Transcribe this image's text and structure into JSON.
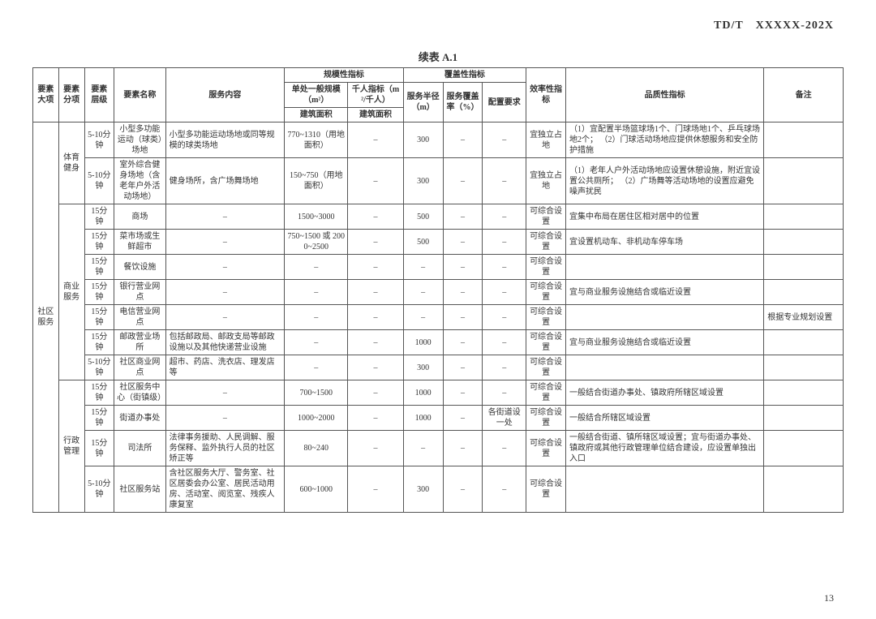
{
  "doc_id": "TD/T XXXXX-202X",
  "title": "续表 A.1",
  "page_num": "13",
  "headers": {
    "h_daxiang": "要素大项",
    "h_fenxiang": "要素分项",
    "h_cengji": "要素层级",
    "h_mingcheng": "要素名称",
    "h_neirong": "服务内容",
    "h_guimo_group": "规模性指标",
    "h_danchu": "单处一般规模（m²）",
    "h_qianren": "千人指标（m²/千人）",
    "h_jianzhu1": "建筑面积",
    "h_jianzhu2": "建筑面积",
    "h_fugai_group": "覆盖性指标",
    "h_banjing": "服务半径（m）",
    "h_fugailv": "服务覆盖率（%）",
    "h_peizhi": "配置要求",
    "h_xiaolv": "效率性指标",
    "h_pinzhi": "品质性指标",
    "h_beizhu": "备注"
  },
  "cat_major": "社区服务",
  "cat_sport": "体育健身",
  "cat_commerce": "商业服务",
  "cat_admin": "行政管理",
  "rows": [
    {
      "lvl": "5-10分钟",
      "name": "小型多功能运动（球类）场地",
      "content": "小型多功能运动场地或同等规模的球类场地",
      "scale": "770~1310（用地面积）",
      "qianren": "–",
      "radius": "300",
      "cov": "–",
      "req": "–",
      "eff": "宜独立占地",
      "quality": "（1）宜配置半场篮球场1个、门球场地1个、乒乓球场地2个；\n（2）门球活动场地应提供休憩服务和安全防护措施",
      "note": ""
    },
    {
      "lvl": "5-10分钟",
      "name": "室外综合健身场地（含老年户外活动场地）",
      "content": "健身场所，含广场舞场地",
      "scale": "150~750（用地面积）",
      "qianren": "–",
      "radius": "300",
      "cov": "–",
      "req": "–",
      "eff": "宜独立占地",
      "quality": "（1）老年人户外活动场地应设置休憩设施，附近宜设置公共厕所；\n（2）广场舞等活动场地的设置应避免噪声扰民",
      "note": ""
    },
    {
      "lvl": "15分钟",
      "name": "商场",
      "content": "–",
      "scale": "1500~3000",
      "qianren": "–",
      "radius": "500",
      "cov": "–",
      "req": "–",
      "eff": "可综合设置",
      "quality": "宜集中布局在居住区相对居中的位置",
      "note": ""
    },
    {
      "lvl": "15分钟",
      "name": "菜市场或生鲜超市",
      "content": "–",
      "scale": "750~1500 或 2000~2500",
      "qianren": "–",
      "radius": "500",
      "cov": "–",
      "req": "–",
      "eff": "可综合设置",
      "quality": "宜设置机动车、非机动车停车场",
      "note": ""
    },
    {
      "lvl": "15分钟",
      "name": "餐饮设施",
      "content": "–",
      "scale": "–",
      "qianren": "–",
      "radius": "–",
      "cov": "–",
      "req": "–",
      "eff": "可综合设置",
      "quality": "",
      "note": ""
    },
    {
      "lvl": "15分钟",
      "name": "银行营业网点",
      "content": "–",
      "scale": "–",
      "qianren": "–",
      "radius": "–",
      "cov": "–",
      "req": "–",
      "eff": "可综合设置",
      "quality": "宜与商业服务设施结合或临近设置",
      "note": ""
    },
    {
      "lvl": "15分钟",
      "name": "电信营业网点",
      "content": "–",
      "scale": "–",
      "qianren": "–",
      "radius": "–",
      "cov": "–",
      "req": "–",
      "eff": "可综合设置",
      "quality": "",
      "note": "根据专业规划设置"
    },
    {
      "lvl": "15分钟",
      "name": "邮政营业场所",
      "content": "包括邮政局、邮政支局等邮政设施以及其他快递营业设施",
      "scale": "–",
      "qianren": "–",
      "radius": "1000",
      "cov": "–",
      "req": "–",
      "eff": "可综合设置",
      "quality": "宜与商业服务设施结合或临近设置",
      "note": ""
    },
    {
      "lvl": "5-10分钟",
      "name": "社区商业网点",
      "content": "超市、药店、洗衣店、理发店等",
      "scale": "–",
      "qianren": "–",
      "radius": "300",
      "cov": "–",
      "req": "–",
      "eff": "可综合设置",
      "quality": "",
      "note": ""
    },
    {
      "lvl": "15分钟",
      "name": "社区服务中心（街镇级）",
      "content": "–",
      "scale": "700~1500",
      "qianren": "–",
      "radius": "1000",
      "cov": "–",
      "req": "–",
      "eff": "可综合设置",
      "quality": "一般结合街道办事处、镇政府所辖区域设置",
      "note": ""
    },
    {
      "lvl": "15分钟",
      "name": "街道办事处",
      "content": "–",
      "scale": "1000~2000",
      "qianren": "–",
      "radius": "1000",
      "cov": "–",
      "req": "各街道设一处",
      "eff": "可综合设置",
      "quality": "一般结合所辖区域设置",
      "note": ""
    },
    {
      "lvl": "15分钟",
      "name": "司法所",
      "content": "法律事务援助、人民调解、服务保释、监外执行人员的社区矫正等",
      "scale": "80~240",
      "qianren": "–",
      "radius": "–",
      "cov": "–",
      "req": "–",
      "eff": "可综合设置",
      "quality": "一般结合街道、镇所辖区域设置；宜与街道办事处、镇政府或其他行政管理单位结合建设，应设置单独出入口",
      "note": ""
    },
    {
      "lvl": "5-10分钟",
      "name": "社区服务站",
      "content": "含社区服务大厅、警务室、社区居委会办公室、居民活动用房、活动室、阅览室、残疾人康复室",
      "scale": "600~1000",
      "qianren": "–",
      "radius": "300",
      "cov": "–",
      "req": "–",
      "eff": "可综合设置",
      "quality": "",
      "note": ""
    }
  ]
}
